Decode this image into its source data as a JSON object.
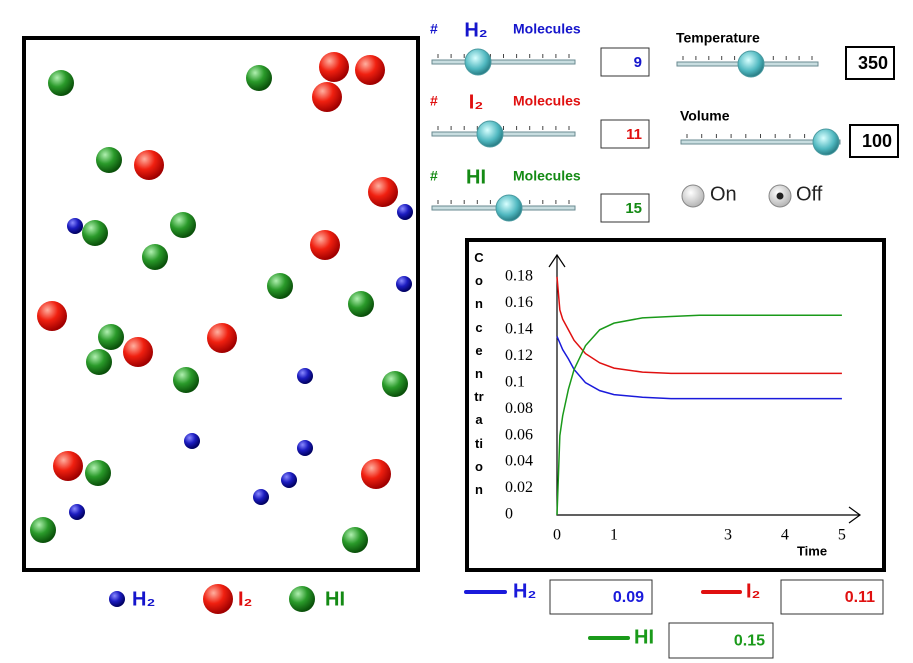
{
  "controls": [
    {
      "hash": "#",
      "formula": "H₂",
      "unit": "Molecules",
      "value": 9,
      "color": "#1515cc"
    },
    {
      "hash": "#",
      "formula": "I₂",
      "unit": "Molecules",
      "value": 11,
      "color": "#e01010"
    },
    {
      "hash": "#",
      "formula": "HI",
      "unit": "Molecules",
      "value": 15,
      "color": "#148a14"
    }
  ],
  "temperature": {
    "label": "Temperature",
    "value": 350
  },
  "volume": {
    "label": "Volume",
    "value": 100
  },
  "mode": {
    "options": [
      "On",
      "Off"
    ],
    "selected": 1
  },
  "box_legend": [
    "H₂",
    "I₂",
    "HI"
  ],
  "chart_data": {
    "type": "line",
    "y_label": "Concentration",
    "x_label": "Time",
    "x": [
      0,
      0.05,
      0.1,
      0.2,
      0.3,
      0.5,
      0.75,
      1,
      1.5,
      2,
      2.5,
      3,
      3.5,
      4,
      4.5,
      5
    ],
    "series": [
      {
        "name": "H₂",
        "color": "#1a1adb",
        "readout": 0.09,
        "values": [
          0.135,
          0.13,
          0.125,
          0.118,
          0.11,
          0.1,
          0.094,
          0.091,
          0.089,
          0.088,
          0.088,
          0.088,
          0.088,
          0.088,
          0.088,
          0.088
        ]
      },
      {
        "name": "I₂",
        "color": "#e01010",
        "readout": 0.11,
        "values": [
          0.18,
          0.155,
          0.148,
          0.14,
          0.132,
          0.122,
          0.115,
          0.111,
          0.108,
          0.107,
          0.107,
          0.107,
          0.107,
          0.107,
          0.107,
          0.107
        ]
      },
      {
        "name": "HI",
        "color": "#1a9a1a",
        "readout": 0.15,
        "values": [
          0,
          0.06,
          0.075,
          0.095,
          0.11,
          0.128,
          0.14,
          0.145,
          0.149,
          0.15,
          0.151,
          0.151,
          0.151,
          0.151,
          0.151,
          0.151
        ]
      }
    ],
    "xlim": [
      0,
      5.3
    ],
    "ylim": [
      0,
      0.195
    ],
    "xticks": [
      0,
      1,
      3,
      4,
      5
    ],
    "yticks": [
      0.18,
      0.16,
      0.14,
      0.12,
      0.1,
      0.08,
      0.06,
      0.04,
      0.02,
      0
    ]
  }
}
